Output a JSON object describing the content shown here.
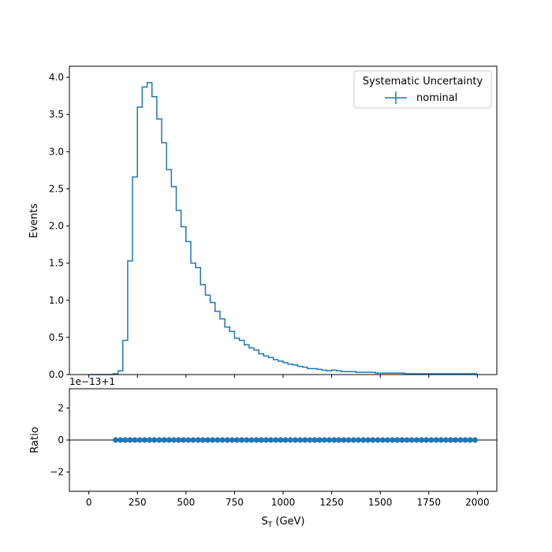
{
  "colors": {
    "series": "#1f77b4",
    "axis": "#000000",
    "reference_line": "#000000",
    "legend_border": "#cccccc"
  },
  "chart_data": [
    {
      "type": "line",
      "panel": "main",
      "drawstyle": "steps",
      "ylabel": "Events",
      "xlim": [
        -100,
        2100
      ],
      "ylim": [
        0,
        4.15
      ],
      "xticks": [
        0,
        250,
        500,
        750,
        1000,
        1250,
        1500,
        1750,
        2000
      ],
      "yticks": [
        0.0,
        0.5,
        1.0,
        1.5,
        2.0,
        2.5,
        3.0,
        3.5,
        4.0
      ],
      "ytick_labels": [
        "0.0",
        "0.5",
        "1.0",
        "1.5",
        "2.0",
        "2.5",
        "3.0",
        "3.5",
        "4.0"
      ],
      "grid": false,
      "legend": {
        "title": "Systematic Uncertainty",
        "placement": "top-right",
        "entries": [
          "nominal"
        ]
      },
      "bin_width": 25,
      "bin_start": 0,
      "series": [
        {
          "name": "nominal",
          "values": [
            0,
            0,
            0,
            0,
            0,
            0.01,
            0.05,
            0.46,
            1.53,
            2.66,
            3.6,
            3.87,
            3.93,
            3.74,
            3.44,
            3.12,
            2.76,
            2.53,
            2.21,
            1.99,
            1.79,
            1.5,
            1.44,
            1.21,
            1.07,
            0.97,
            0.85,
            0.75,
            0.64,
            0.58,
            0.49,
            0.46,
            0.4,
            0.36,
            0.33,
            0.28,
            0.25,
            0.23,
            0.2,
            0.18,
            0.16,
            0.14,
            0.13,
            0.11,
            0.1,
            0.08,
            0.08,
            0.07,
            0.06,
            0.05,
            0.06,
            0.05,
            0.04,
            0.04,
            0.04,
            0.03,
            0.03,
            0.03,
            0.03,
            0.02,
            0.02,
            0.02,
            0.02,
            0.02,
            0.02,
            0.01,
            0.01,
            0.01,
            0.01,
            0.01,
            0.01,
            0.01,
            0.01,
            0.01,
            0.01,
            0.01,
            0.01,
            0.01,
            0.01,
            0.01
          ]
        }
      ]
    },
    {
      "type": "scatter",
      "panel": "ratio",
      "xlabel": "S_T (GeV)",
      "xlabel_main": "S",
      "xlabel_sub": "T",
      "xlabel_suffix": " (GeV)",
      "ylabel": "Ratio",
      "offset_text": "1e−13+1",
      "xlim": [
        -100,
        2100
      ],
      "ylim": [
        -3.2,
        3.2
      ],
      "xticks": [
        0,
        250,
        500,
        750,
        1000,
        1250,
        1500,
        1750,
        2000
      ],
      "xtick_labels": [
        "0",
        "250",
        "500",
        "750",
        "1000",
        "1250",
        "1500",
        "1750",
        "2000"
      ],
      "yticks": [
        -2,
        0,
        2
      ],
      "ytick_labels": [
        "−2",
        "0",
        "2"
      ],
      "reference_line_y": 0,
      "grid": false,
      "x": [
        137.5,
        162.5,
        187.5,
        212.5,
        237.5,
        262.5,
        287.5,
        312.5,
        337.5,
        362.5,
        387.5,
        412.5,
        437.5,
        462.5,
        487.5,
        512.5,
        537.5,
        562.5,
        587.5,
        612.5,
        637.5,
        662.5,
        687.5,
        712.5,
        737.5,
        762.5,
        787.5,
        812.5,
        837.5,
        862.5,
        887.5,
        912.5,
        937.5,
        962.5,
        987.5,
        1012.5,
        1037.5,
        1062.5,
        1087.5,
        1112.5,
        1137.5,
        1162.5,
        1187.5,
        1212.5,
        1237.5,
        1262.5,
        1287.5,
        1312.5,
        1337.5,
        1362.5,
        1387.5,
        1412.5,
        1437.5,
        1462.5,
        1487.5,
        1512.5,
        1537.5,
        1562.5,
        1587.5,
        1612.5,
        1637.5,
        1662.5,
        1687.5,
        1712.5,
        1737.5,
        1762.5,
        1787.5,
        1812.5,
        1837.5,
        1862.5,
        1887.5,
        1912.5,
        1937.5,
        1962.5,
        1987.5
      ],
      "y": 0
    }
  ]
}
